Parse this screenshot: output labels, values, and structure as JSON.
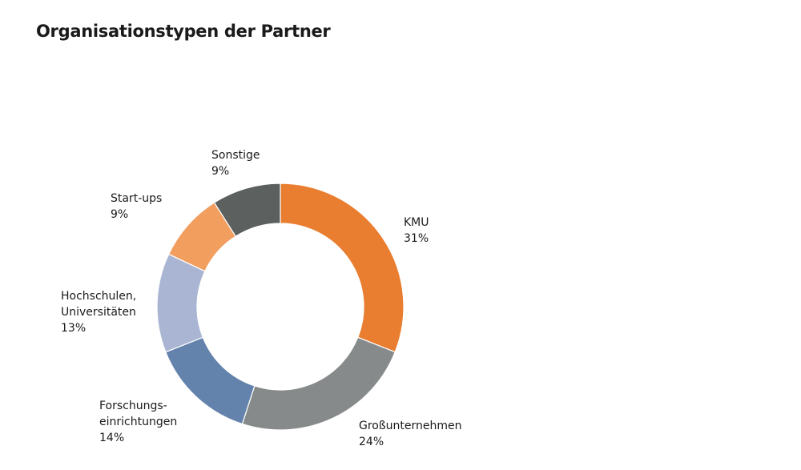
{
  "title": "Organisationstypen der Partner",
  "chart_data": {
    "type": "pie",
    "donut": true,
    "title": "Organisationstypen der Partner",
    "categories": [
      "KMU",
      "Großunternehmen",
      "Forschungs-\neinrichtungen",
      "Hochschulen,\nUniversitäten",
      "Start-ups",
      "Sonstige"
    ],
    "values": [
      31,
      24,
      14,
      13,
      9,
      9
    ],
    "value_labels": [
      "31%",
      "24%",
      "14%",
      "13%",
      "9%",
      "9%"
    ],
    "colors": [
      "#E97E30",
      "#878A8A",
      "#6383AD",
      "#A9B5D2",
      "#F19E5F",
      "#5C605F"
    ]
  }
}
